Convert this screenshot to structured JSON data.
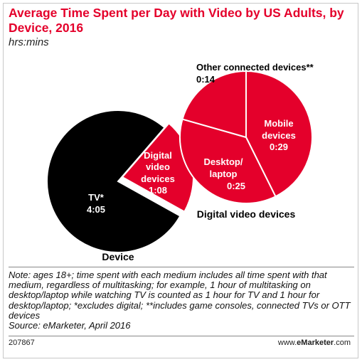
{
  "chart_data": [
    {
      "type": "pie",
      "title": "Average Time Spent per Day with Video by US Adults, by Device, 2016",
      "subtitle": "hrs:mins",
      "label": "Device",
      "slices": [
        {
          "name": "TV*",
          "value_label": "4:05",
          "minutes": 245,
          "color": "#000000"
        },
        {
          "name": "Digital video devices",
          "value_label": "1:08",
          "minutes": 68,
          "color": "#e4002b"
        }
      ]
    },
    {
      "type": "pie",
      "label": "Digital video devices",
      "slices": [
        {
          "name": "Mobile devices",
          "value_label": "0:29",
          "minutes": 29,
          "color": "#e4002b"
        },
        {
          "name": "Desktop/ laptop",
          "value_label": "0:25",
          "minutes": 25,
          "color": "#e4002b"
        },
        {
          "name": "Other connected devices**",
          "value_label": "0:14",
          "minutes": 14,
          "color": "#e4002b"
        }
      ]
    }
  ],
  "labels": {
    "tv_name": "TV*",
    "tv_value": "4:05",
    "digital_line1": "Digital",
    "digital_line2": "video",
    "digital_line3": "devices",
    "digital_value": "1:08",
    "mobile_line1": "Mobile",
    "mobile_line2": "devices",
    "mobile_value": "0:29",
    "desktop_line1": "Desktop/",
    "desktop_line2": "laptop",
    "desktop_value": "0:25",
    "other_line1": "Other connected devices**",
    "other_value": "0:14",
    "left_caption": "Device",
    "right_caption": "Digital video devices"
  },
  "note": "Note: ages 18+; time spent with each medium includes all time spent with that medium, regardless of multitasking; for example, 1 hour of multitasking on desktop/laptop while watching TV is counted as 1 hour for TV and 1 hour for desktop/laptop; *excludes digital; **includes game consoles, connected TVs or OTT devices",
  "source": "Source: eMarketer, April 2016",
  "footer": {
    "chart_id": "207867",
    "brand_prefix": "www.",
    "brand_bold": "eMarketer",
    "brand_suffix": ".com"
  },
  "colors": {
    "accent": "#e4002b",
    "tv": "#000000"
  }
}
